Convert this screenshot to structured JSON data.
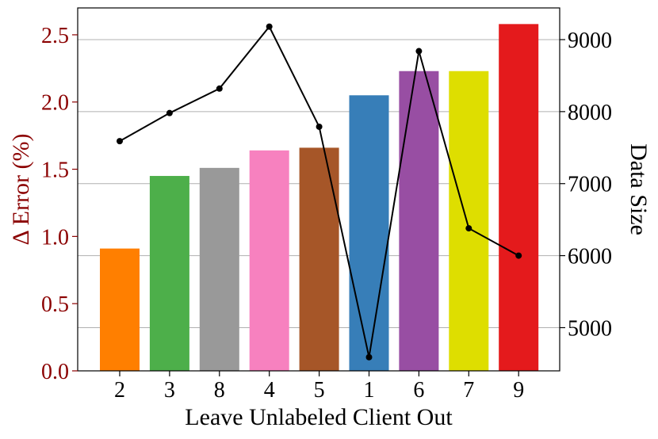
{
  "chart_data": {
    "type": "bar",
    "categories": [
      "2",
      "3",
      "8",
      "4",
      "5",
      "1",
      "6",
      "7",
      "9"
    ],
    "series": [
      {
        "values": [
          0.91,
          1.45,
          1.51,
          1.64,
          1.66,
          2.05,
          2.23,
          2.23,
          2.58
        ],
        "colors": [
          "#ff7f00",
          "#4daf4a",
          "#999999",
          "#f781bf",
          "#a65628",
          "#377eb8",
          "#984ea3",
          "#dede00",
          "#e41a1c"
        ]
      },
      {
        "type": "line",
        "axis": "right",
        "values": [
          7590,
          7980,
          8320,
          9180,
          7790,
          4590,
          8840,
          6380,
          6000
        ],
        "color": "#000000"
      }
    ],
    "xlabel": "Leave Unlabeled Client Out",
    "ylabel": "Δ Error (%)",
    "y2label": "Data Size",
    "ylim": [
      0,
      2.7
    ],
    "y2lim": [
      4400,
      9440
    ],
    "yticks": [
      "0.0",
      "0.5",
      "1.0",
      "1.5",
      "2.0",
      "2.5"
    ],
    "y2ticks": [
      "5000",
      "6000",
      "7000",
      "8000",
      "9000"
    ],
    "left_axis_color": "#8b0000",
    "grid": true,
    "legend": "none"
  }
}
